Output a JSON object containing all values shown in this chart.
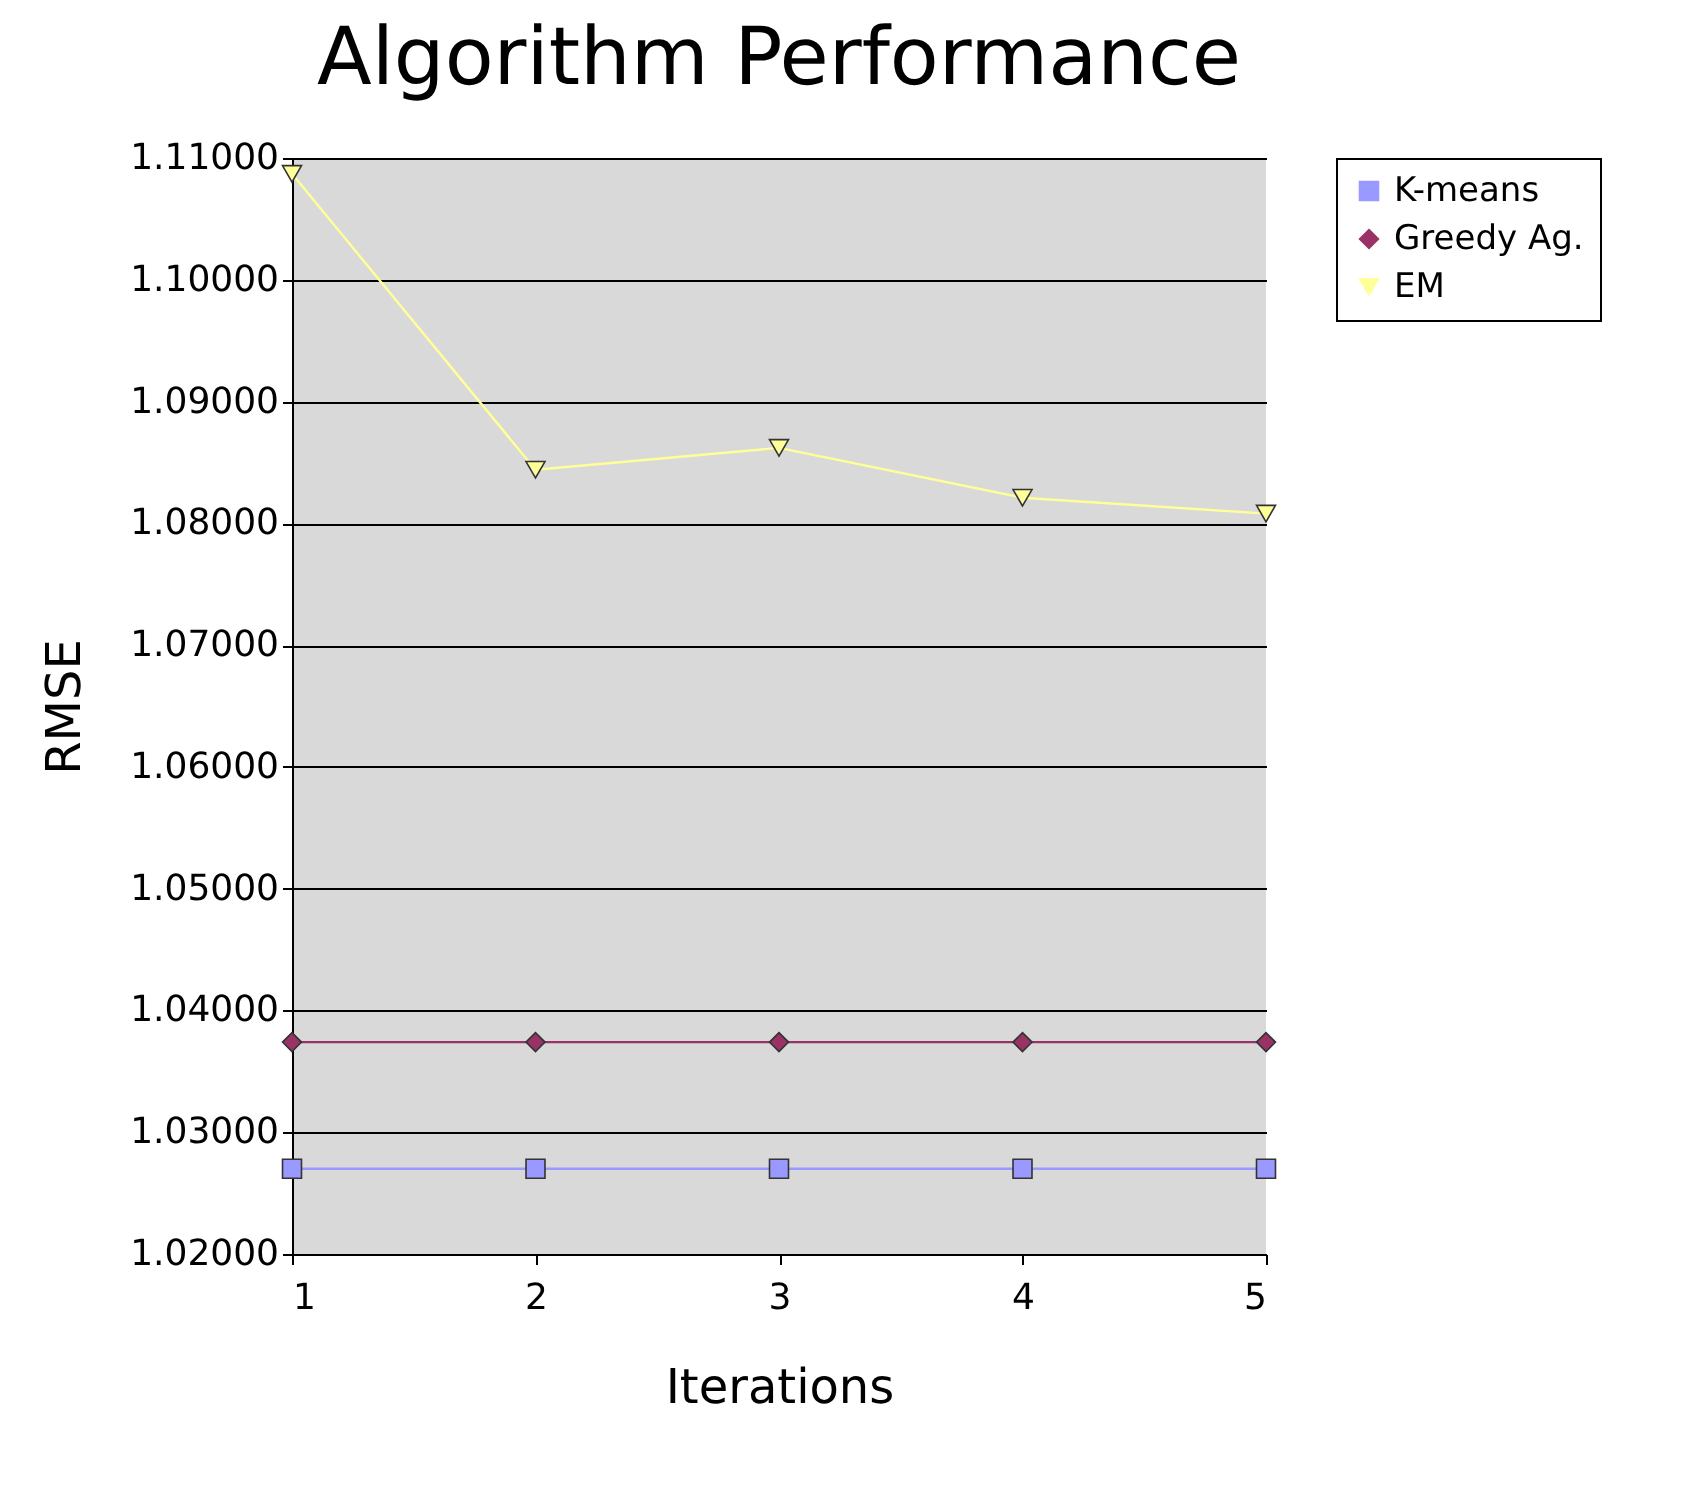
{
  "chart_data": {
    "type": "line",
    "title": "Algorithm Performance",
    "xlabel": "Iterations",
    "ylabel": "RMSE",
    "x": [
      1,
      2,
      3,
      4,
      5
    ],
    "series": [
      {
        "name": "K-means",
        "color": "#9999ff",
        "marker": "square",
        "values": [
          1.027,
          1.027,
          1.027,
          1.027,
          1.027
        ]
      },
      {
        "name": "Greedy Ag.",
        "color": "#993366",
        "marker": "diamond",
        "values": [
          1.0374,
          1.0374,
          1.0374,
          1.0374,
          1.0374
        ]
      },
      {
        "name": "EM",
        "color": "#ffff99",
        "marker": "triangle",
        "values": [
          1.1087,
          1.0844,
          1.0862,
          1.0821,
          1.0808
        ]
      }
    ],
    "xlim": [
      1,
      5
    ],
    "xticks": [
      1,
      2,
      3,
      4,
      5
    ],
    "ylim": [
      1.02,
      1.11
    ],
    "yticks": [
      {
        "value": 1.02,
        "label": "1.02000"
      },
      {
        "value": 1.03,
        "label": "1.03000"
      },
      {
        "value": 1.04,
        "label": "1.04000"
      },
      {
        "value": 1.05,
        "label": "1.05000"
      },
      {
        "value": 1.06,
        "label": "1.06000"
      },
      {
        "value": 1.07,
        "label": "1.07000"
      },
      {
        "value": 1.08,
        "label": "1.08000"
      },
      {
        "value": 1.09,
        "label": "1.09000"
      },
      {
        "value": 1.1,
        "label": "1.10000"
      },
      {
        "value": 1.11,
        "label": "1.11000"
      }
    ],
    "grid": "y",
    "legend": "right"
  }
}
